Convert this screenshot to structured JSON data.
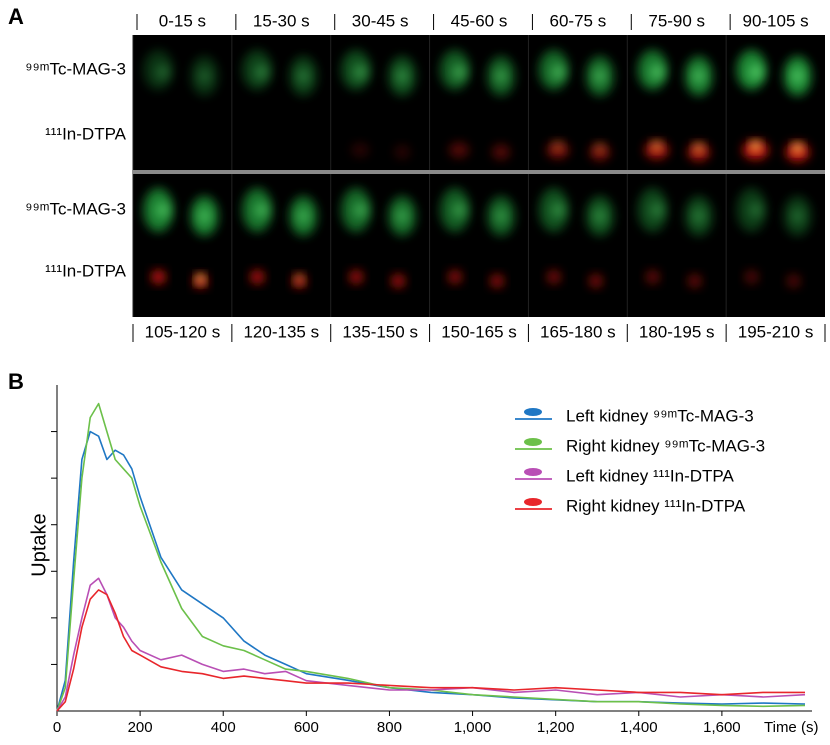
{
  "panel_a": {
    "label": "A",
    "top_times": [
      "0-15 s",
      "15-30 s",
      "30-45 s",
      "45-60 s",
      "60-75 s",
      "75-90 s",
      "90-105 s"
    ],
    "bottom_times": [
      "105-120 s",
      "120-135 s",
      "135-150 s",
      "150-165 s",
      "165-180 s",
      "180-195 s",
      "195-210 s"
    ],
    "rows": [
      "⁹⁹ᵐTc-MAG-3",
      "¹¹¹In-DTPA",
      "⁹⁹ᵐTc-MAG-3",
      "¹¹¹In-DTPA"
    ]
  },
  "chart_data": {
    "type": "line",
    "panel_label": "B",
    "ylabel": "Uptake",
    "xlabel": "Time (s)",
    "x": [
      0,
      20,
      40,
      60,
      80,
      100,
      120,
      140,
      160,
      180,
      200,
      250,
      300,
      350,
      400,
      450,
      500,
      550,
      600,
      700,
      800,
      900,
      1000,
      1100,
      1200,
      1300,
      1400,
      1500,
      1600,
      1700,
      1800
    ],
    "series": [
      {
        "name": "Left kidney ⁹⁹ᵐTc-MAG-3",
        "color": "#1f77c4",
        "values": [
          0,
          0.66,
          3.2,
          5.4,
          6.0,
          5.9,
          5.4,
          5.6,
          5.5,
          5.2,
          4.6,
          3.3,
          2.6,
          2.3,
          2.0,
          1.5,
          1.2,
          1.0,
          0.8,
          0.66,
          0.5,
          0.4,
          0.35,
          0.28,
          0.24,
          0.2,
          0.2,
          0.17,
          0.15,
          0.17,
          0.15
        ]
      },
      {
        "name": "Right kidney ⁹⁹ᵐTc-MAG-3",
        "color": "#6cc04a",
        "values": [
          0,
          0.5,
          2.8,
          5.0,
          6.3,
          6.6,
          6.0,
          5.4,
          5.2,
          5.0,
          4.4,
          3.2,
          2.2,
          1.6,
          1.4,
          1.3,
          1.1,
          0.9,
          0.85,
          0.7,
          0.5,
          0.45,
          0.35,
          0.3,
          0.25,
          0.2,
          0.2,
          0.15,
          0.12,
          0.1,
          0.12
        ]
      },
      {
        "name": "Left kidney ¹¹¹In-DTPA",
        "color": "#b94fb5",
        "values": [
          0,
          0.3,
          1.2,
          2.0,
          2.7,
          2.85,
          2.5,
          2.0,
          1.8,
          1.5,
          1.3,
          1.1,
          1.2,
          1.0,
          0.85,
          0.9,
          0.8,
          0.85,
          0.65,
          0.55,
          0.45,
          0.45,
          0.5,
          0.4,
          0.45,
          0.35,
          0.4,
          0.3,
          0.35,
          0.3,
          0.35
        ]
      },
      {
        "name": "Right kidney ¹¹¹In-DTPA",
        "color": "#e8262b",
        "values": [
          0,
          0.2,
          0.9,
          1.8,
          2.4,
          2.6,
          2.5,
          2.1,
          1.6,
          1.3,
          1.2,
          0.95,
          0.85,
          0.8,
          0.7,
          0.75,
          0.7,
          0.65,
          0.6,
          0.6,
          0.55,
          0.5,
          0.5,
          0.45,
          0.5,
          0.45,
          0.4,
          0.4,
          0.35,
          0.4,
          0.4
        ]
      }
    ],
    "xlim": [
      0,
      1800
    ],
    "ylim": [
      0,
      7
    ],
    "xticks": [
      0,
      200,
      400,
      600,
      800,
      {
        "value": 1000,
        "label": "1,000"
      },
      {
        "value": 1200,
        "label": "1,200"
      },
      {
        "value": 1400,
        "label": "1,400"
      },
      {
        "value": 1600,
        "label": "1,600"
      }
    ],
    "yticks": [
      1,
      2,
      3,
      4,
      5,
      6
    ],
    "legend": "upper right"
  }
}
